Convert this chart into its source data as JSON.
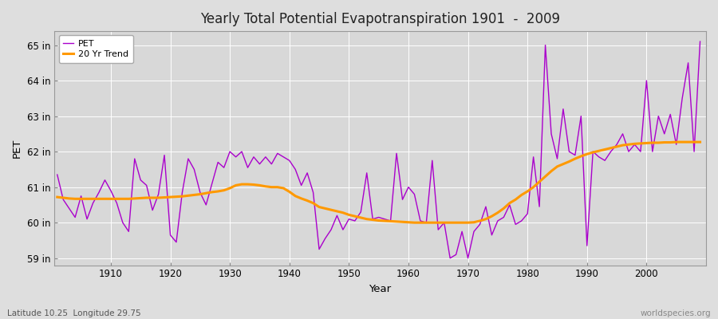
{
  "title": "Yearly Total Potential Evapotranspiration 1901  -  2009",
  "xlabel": "Year",
  "ylabel": "PET",
  "subtitle_left": "Latitude 10.25  Longitude 29.75",
  "subtitle_right": "worldspecies.org",
  "ylim": [
    58.8,
    65.4
  ],
  "xlim": [
    1900.5,
    2010
  ],
  "ytick_labels": [
    "59 in",
    "60 in",
    "61 in",
    "62 in",
    "63 in",
    "64 in",
    "65 in"
  ],
  "ytick_values": [
    59,
    60,
    61,
    62,
    63,
    64,
    65
  ],
  "xtick_values": [
    1910,
    1920,
    1930,
    1940,
    1950,
    1960,
    1970,
    1980,
    1990,
    2000
  ],
  "pet_color": "#AA00CC",
  "trend_color": "#FF9900",
  "bg_color": "#DEDEDE",
  "plot_bg_color": "#D8D8D8",
  "grid_color": "#FFFFFF",
  "pet_years": [
    1901,
    1902,
    1903,
    1904,
    1905,
    1906,
    1907,
    1908,
    1909,
    1910,
    1911,
    1912,
    1913,
    1914,
    1915,
    1916,
    1917,
    1918,
    1919,
    1920,
    1921,
    1922,
    1923,
    1924,
    1925,
    1926,
    1927,
    1928,
    1929,
    1930,
    1931,
    1932,
    1933,
    1934,
    1935,
    1936,
    1937,
    1938,
    1939,
    1940,
    1941,
    1942,
    1943,
    1944,
    1945,
    1946,
    1947,
    1948,
    1949,
    1950,
    1951,
    1952,
    1953,
    1954,
    1955,
    1956,
    1957,
    1958,
    1959,
    1960,
    1961,
    1962,
    1963,
    1964,
    1965,
    1966,
    1967,
    1968,
    1969,
    1970,
    1971,
    1972,
    1973,
    1974,
    1975,
    1976,
    1977,
    1978,
    1979,
    1980,
    1981,
    1982,
    1983,
    1984,
    1985,
    1986,
    1987,
    1988,
    1989,
    1990,
    1991,
    1992,
    1993,
    1994,
    1995,
    1996,
    1997,
    1998,
    1999,
    2000,
    2001,
    2002,
    2003,
    2004,
    2005,
    2006,
    2007,
    2008,
    2009
  ],
  "pet_values": [
    61.35,
    60.65,
    60.4,
    60.15,
    60.75,
    60.1,
    60.55,
    60.85,
    61.2,
    60.9,
    60.55,
    60.0,
    59.75,
    61.8,
    61.2,
    61.05,
    60.35,
    60.8,
    61.9,
    59.65,
    59.45,
    60.85,
    61.8,
    61.5,
    60.85,
    60.5,
    61.1,
    61.7,
    61.55,
    62.0,
    61.85,
    62.0,
    61.55,
    61.85,
    61.65,
    61.85,
    61.65,
    61.95,
    61.85,
    61.75,
    61.5,
    61.05,
    61.4,
    60.85,
    59.25,
    59.55,
    59.8,
    60.2,
    59.8,
    60.1,
    60.05,
    60.3,
    61.4,
    60.1,
    60.15,
    60.1,
    60.05,
    61.95,
    60.65,
    61.0,
    60.8,
    60.05,
    60.0,
    61.75,
    59.8,
    60.0,
    59.0,
    59.1,
    59.75,
    59.0,
    59.75,
    59.95,
    60.45,
    59.65,
    60.05,
    60.15,
    60.5,
    59.95,
    60.05,
    60.25,
    61.85,
    60.45,
    65.0,
    62.5,
    61.8,
    63.2,
    62.0,
    61.9,
    63.0,
    59.35,
    62.0,
    61.85,
    61.75,
    62.0,
    62.2,
    62.5,
    62.0,
    62.2,
    62.0,
    64.0,
    62.0,
    63.0,
    62.5,
    63.05,
    62.2,
    63.5,
    64.5,
    62.0,
    65.1
  ],
  "trend_years": [
    1901,
    1902,
    1903,
    1904,
    1905,
    1906,
    1907,
    1908,
    1909,
    1910,
    1911,
    1912,
    1913,
    1914,
    1915,
    1916,
    1917,
    1918,
    1919,
    1920,
    1921,
    1922,
    1923,
    1924,
    1925,
    1926,
    1927,
    1928,
    1929,
    1930,
    1931,
    1932,
    1933,
    1934,
    1935,
    1936,
    1937,
    1938,
    1939,
    1940,
    1941,
    1942,
    1943,
    1944,
    1945,
    1946,
    1947,
    1948,
    1949,
    1950,
    1951,
    1952,
    1953,
    1954,
    1955,
    1956,
    1957,
    1958,
    1959,
    1960,
    1961,
    1962,
    1963,
    1964,
    1965,
    1966,
    1967,
    1968,
    1969,
    1970,
    1971,
    1972,
    1973,
    1974,
    1975,
    1976,
    1977,
    1978,
    1979,
    1980,
    1981,
    1982,
    1983,
    1984,
    1985,
    1986,
    1987,
    1988,
    1989,
    1990,
    1991,
    1992,
    1993,
    1994,
    1995,
    1996,
    1997,
    1998,
    1999,
    2000,
    2001,
    2002,
    2003,
    2004,
    2005,
    2006,
    2007,
    2008,
    2009
  ],
  "trend_values": [
    60.72,
    60.7,
    60.68,
    60.67,
    60.67,
    60.67,
    60.67,
    60.67,
    60.67,
    60.67,
    60.67,
    60.67,
    60.67,
    60.68,
    60.69,
    60.7,
    60.7,
    60.7,
    60.71,
    60.72,
    60.73,
    60.74,
    60.76,
    60.78,
    60.8,
    60.83,
    60.86,
    60.88,
    60.91,
    60.97,
    61.05,
    61.08,
    61.08,
    61.07,
    61.05,
    61.02,
    61.0,
    61.0,
    60.97,
    60.87,
    60.75,
    60.68,
    60.62,
    60.55,
    60.44,
    60.4,
    60.36,
    60.32,
    60.28,
    60.22,
    60.18,
    60.14,
    60.1,
    60.08,
    60.06,
    60.05,
    60.04,
    60.03,
    60.02,
    60.01,
    60.0,
    60.0,
    60.0,
    60.0,
    60.0,
    60.0,
    60.0,
    60.0,
    60.0,
    60.0,
    60.01,
    60.05,
    60.1,
    60.18,
    60.28,
    60.4,
    60.55,
    60.65,
    60.78,
    60.88,
    61.0,
    61.15,
    61.3,
    61.45,
    61.58,
    61.65,
    61.72,
    61.8,
    61.87,
    61.93,
    61.98,
    62.02,
    62.06,
    62.1,
    62.14,
    62.18,
    62.2,
    62.22,
    62.23,
    62.24,
    62.25,
    62.25,
    62.26,
    62.26,
    62.27,
    62.27,
    62.27,
    62.27,
    62.27
  ]
}
